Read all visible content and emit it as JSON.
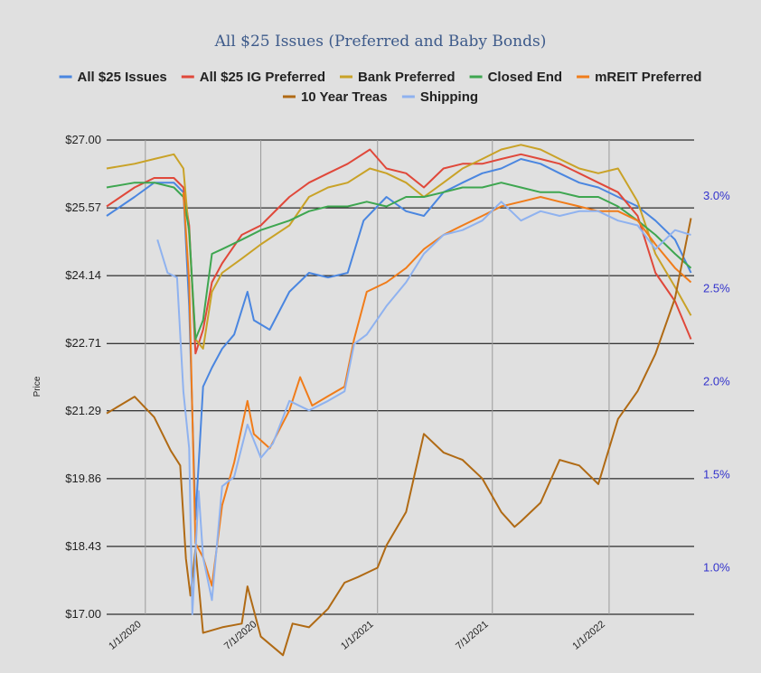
{
  "chart_data": {
    "type": "line",
    "title": "All $25 Issues (Preferred and Baby Bonds)",
    "ylabel": "Price",
    "ylim": [
      17.0,
      27.0
    ],
    "y2lim": [
      0.75,
      3.3
    ],
    "xlim": [
      "2019-11-01",
      "2022-05-15"
    ],
    "y_ticks": [
      "$17.00",
      "$18.43",
      "$19.86",
      "$21.29",
      "$22.71",
      "$24.14",
      "$25.57",
      "$27.00"
    ],
    "y2_ticks": [
      "1.0%",
      "1.5%",
      "2.0%",
      "2.5%",
      "3.0%"
    ],
    "x_ticks": [
      "1/1/2020",
      "7/1/2020",
      "1/1/2021",
      "7/1/2021",
      "1/1/2022"
    ],
    "grid": {
      "horizontal": true,
      "vertical": true
    },
    "legend_position": "top",
    "series": [
      {
        "name": "All $25 Issues",
        "color": "#4a86e0",
        "axis": "left",
        "x": [
          "2019-11-01",
          "2019-12-15",
          "2020-01-15",
          "2020-02-15",
          "2020-03-01",
          "2020-03-10",
          "2020-03-20",
          "2020-04-01",
          "2020-04-15",
          "2020-05-01",
          "2020-05-20",
          "2020-06-10",
          "2020-06-20",
          "2020-07-15",
          "2020-08-15",
          "2020-09-15",
          "2020-10-15",
          "2020-11-15",
          "2020-12-10",
          "2021-01-15",
          "2021-02-15",
          "2021-03-15",
          "2021-04-15",
          "2021-05-15",
          "2021-06-15",
          "2021-07-15",
          "2021-08-15",
          "2021-09-15",
          "2021-10-15",
          "2021-11-15",
          "2021-12-15",
          "2022-01-15",
          "2022-02-15",
          "2022-03-15",
          "2022-04-15",
          "2022-05-10"
        ],
        "y": [
          25.4,
          25.8,
          26.1,
          26.1,
          25.9,
          23.5,
          19.0,
          21.8,
          22.2,
          22.6,
          22.9,
          23.8,
          23.2,
          23.0,
          23.8,
          24.2,
          24.1,
          24.2,
          25.3,
          25.8,
          25.5,
          25.4,
          25.9,
          26.1,
          26.3,
          26.4,
          26.6,
          26.5,
          26.3,
          26.1,
          26.0,
          25.8,
          25.6,
          25.3,
          24.9,
          24.2
        ]
      },
      {
        "name": "All $25 IG Preferred",
        "color": "#e0483a",
        "axis": "left",
        "x": [
          "2019-11-01",
          "2019-12-15",
          "2020-01-15",
          "2020-02-15",
          "2020-03-01",
          "2020-03-10",
          "2020-03-20",
          "2020-04-01",
          "2020-04-15",
          "2020-05-01",
          "2020-06-01",
          "2020-07-01",
          "2020-08-15",
          "2020-09-15",
          "2020-10-15",
          "2020-11-15",
          "2020-12-20",
          "2021-01-15",
          "2021-02-15",
          "2021-03-15",
          "2021-04-15",
          "2021-05-15",
          "2021-06-15",
          "2021-07-15",
          "2021-08-15",
          "2021-09-15",
          "2021-10-15",
          "2021-11-15",
          "2021-12-15",
          "2022-01-15",
          "2022-02-15",
          "2022-03-15",
          "2022-04-15",
          "2022-05-10"
        ],
        "y": [
          25.6,
          26.0,
          26.2,
          26.2,
          26.0,
          25.2,
          22.5,
          23.0,
          24.0,
          24.4,
          25.0,
          25.2,
          25.8,
          26.1,
          26.3,
          26.5,
          26.8,
          26.4,
          26.3,
          26.0,
          26.4,
          26.5,
          26.5,
          26.6,
          26.7,
          26.6,
          26.5,
          26.3,
          26.1,
          25.9,
          25.4,
          24.2,
          23.6,
          22.8
        ]
      },
      {
        "name": "Bank Preferred",
        "color": "#c9a227",
        "axis": "left",
        "x": [
          "2019-11-01",
          "2019-12-15",
          "2020-01-15",
          "2020-02-15",
          "2020-03-01",
          "2020-03-10",
          "2020-03-20",
          "2020-04-01",
          "2020-04-15",
          "2020-05-01",
          "2020-06-01",
          "2020-07-01",
          "2020-08-15",
          "2020-09-15",
          "2020-10-15",
          "2020-11-15",
          "2020-12-20",
          "2021-01-15",
          "2021-02-15",
          "2021-03-15",
          "2021-04-15",
          "2021-05-15",
          "2021-06-15",
          "2021-07-15",
          "2021-08-15",
          "2021-09-15",
          "2021-10-15",
          "2021-11-15",
          "2021-12-15",
          "2022-01-15",
          "2022-02-15",
          "2022-03-15",
          "2022-04-15",
          "2022-05-10"
        ],
        "y": [
          26.4,
          26.5,
          26.6,
          26.7,
          26.4,
          25.0,
          22.8,
          22.6,
          23.8,
          24.2,
          24.5,
          24.8,
          25.2,
          25.8,
          26.0,
          26.1,
          26.4,
          26.3,
          26.1,
          25.8,
          26.1,
          26.4,
          26.6,
          26.8,
          26.9,
          26.8,
          26.6,
          26.4,
          26.3,
          26.4,
          25.7,
          24.6,
          23.9,
          23.3
        ]
      },
      {
        "name": "Closed End",
        "color": "#3ea650",
        "axis": "left",
        "x": [
          "2019-11-01",
          "2019-12-15",
          "2020-01-15",
          "2020-02-15",
          "2020-03-01",
          "2020-03-10",
          "2020-03-20",
          "2020-04-01",
          "2020-04-15",
          "2020-05-01",
          "2020-06-01",
          "2020-07-01",
          "2020-08-15",
          "2020-09-15",
          "2020-10-15",
          "2020-11-15",
          "2020-12-15",
          "2021-01-15",
          "2021-02-15",
          "2021-03-15",
          "2021-04-15",
          "2021-05-15",
          "2021-06-15",
          "2021-07-15",
          "2021-08-15",
          "2021-09-15",
          "2021-10-15",
          "2021-11-15",
          "2021-12-15",
          "2022-01-15",
          "2022-02-15",
          "2022-03-15",
          "2022-04-15",
          "2022-05-10"
        ],
        "y": [
          26.0,
          26.1,
          26.1,
          26.0,
          25.8,
          25.1,
          22.8,
          23.2,
          24.6,
          24.7,
          24.9,
          25.1,
          25.3,
          25.5,
          25.6,
          25.6,
          25.7,
          25.6,
          25.8,
          25.8,
          25.9,
          26.0,
          26.0,
          26.1,
          26.0,
          25.9,
          25.9,
          25.8,
          25.8,
          25.6,
          25.3,
          25.0,
          24.6,
          24.3
        ]
      },
      {
        "name": "mREIT Preferred",
        "color": "#f07c1a",
        "axis": "left",
        "x": [
          "2020-03-01",
          "2020-03-10",
          "2020-03-20",
          "2020-04-01",
          "2020-04-15",
          "2020-05-01",
          "2020-05-20",
          "2020-06-10",
          "2020-06-20",
          "2020-07-15",
          "2020-08-15",
          "2020-09-01",
          "2020-09-20",
          "2020-10-15",
          "2020-11-10",
          "2020-11-25",
          "2020-12-15",
          "2021-01-15",
          "2021-02-15",
          "2021-03-15",
          "2021-04-15",
          "2021-05-15",
          "2021-06-15",
          "2021-07-15",
          "2021-08-15",
          "2021-09-15",
          "2021-10-15",
          "2021-11-15",
          "2021-12-15",
          "2022-01-15",
          "2022-02-15",
          "2022-03-15",
          "2022-04-15",
          "2022-05-10"
        ],
        "y": [
          25.9,
          24.0,
          18.5,
          18.2,
          17.6,
          19.3,
          20.2,
          21.5,
          20.8,
          20.5,
          21.3,
          22.0,
          21.4,
          21.6,
          21.8,
          22.8,
          23.8,
          24.0,
          24.3,
          24.7,
          25.0,
          25.2,
          25.4,
          25.6,
          25.7,
          25.8,
          25.7,
          25.6,
          25.5,
          25.5,
          25.3,
          24.8,
          24.3,
          24.0
        ]
      },
      {
        "name": "10 Year Treas",
        "color": "#b06a14",
        "axis": "right",
        "x": [
          "2019-11-01",
          "2019-12-15",
          "2020-01-15",
          "2020-02-10",
          "2020-02-25",
          "2020-03-05",
          "2020-03-12",
          "2020-03-20",
          "2020-04-01",
          "2020-05-01",
          "2020-06-01",
          "2020-06-10",
          "2020-07-01",
          "2020-08-05",
          "2020-08-20",
          "2020-09-15",
          "2020-10-15",
          "2020-11-10",
          "2020-12-01",
          "2021-01-01",
          "2021-01-15",
          "2021-02-15",
          "2021-03-15",
          "2021-04-15",
          "2021-05-15",
          "2021-06-15",
          "2021-07-15",
          "2021-08-05",
          "2021-08-15",
          "2021-09-15",
          "2021-10-15",
          "2021-11-15",
          "2021-12-15",
          "2022-01-15",
          "2022-02-15",
          "2022-03-15",
          "2022-04-15",
          "2022-05-10"
        ],
        "y": [
          1.83,
          1.92,
          1.81,
          1.63,
          1.55,
          1.05,
          0.85,
          1.1,
          0.65,
          0.68,
          0.7,
          0.9,
          0.63,
          0.53,
          0.7,
          0.68,
          0.78,
          0.92,
          0.95,
          1.0,
          1.12,
          1.3,
          1.72,
          1.62,
          1.58,
          1.48,
          1.3,
          1.22,
          1.25,
          1.35,
          1.58,
          1.55,
          1.45,
          1.8,
          1.95,
          2.15,
          2.45,
          2.88
        ]
      },
      {
        "name": "Shipping",
        "color": "#8fb2ef",
        "axis": "left",
        "x": [
          "2020-01-20",
          "2020-02-05",
          "2020-02-20",
          "2020-03-01",
          "2020-03-10",
          "2020-03-15",
          "2020-03-25",
          "2020-04-01",
          "2020-04-15",
          "2020-05-01",
          "2020-05-20",
          "2020-06-10",
          "2020-07-01",
          "2020-07-20",
          "2020-08-15",
          "2020-09-15",
          "2020-10-15",
          "2020-11-10",
          "2020-11-25",
          "2020-12-15",
          "2021-01-15",
          "2021-02-15",
          "2021-03-15",
          "2021-04-15",
          "2021-05-15",
          "2021-06-15",
          "2021-07-15",
          "2021-08-15",
          "2021-09-15",
          "2021-10-15",
          "2021-11-15",
          "2021-12-15",
          "2022-01-15",
          "2022-02-15",
          "2022-03-15",
          "2022-04-15",
          "2022-05-10"
        ],
        "y": [
          24.9,
          24.2,
          24.1,
          21.7,
          20.5,
          17.0,
          19.6,
          18.2,
          17.3,
          19.7,
          19.9,
          21.0,
          20.3,
          20.6,
          21.5,
          21.3,
          21.5,
          21.7,
          22.7,
          22.9,
          23.5,
          24.0,
          24.6,
          25.0,
          25.1,
          25.3,
          25.7,
          25.3,
          25.5,
          25.4,
          25.5,
          25.5,
          25.3,
          25.2,
          24.7,
          25.1,
          25.0
        ]
      }
    ]
  }
}
